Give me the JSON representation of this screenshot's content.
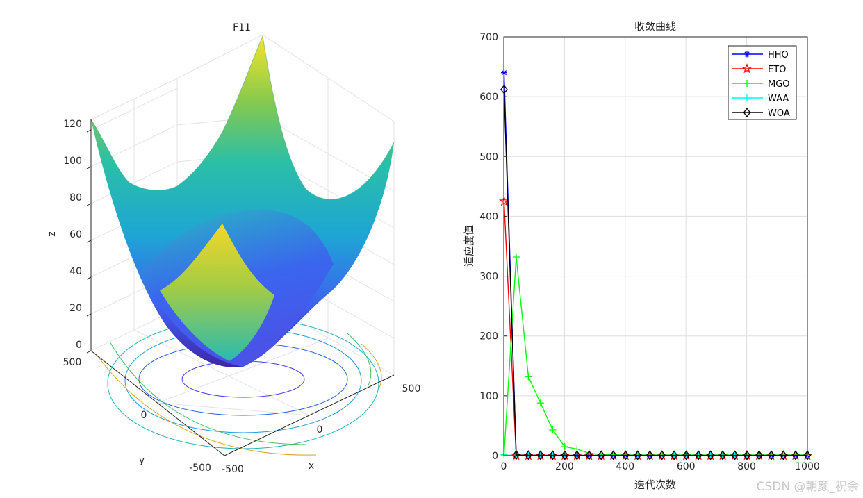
{
  "left_plot": {
    "title": "F11",
    "zlabel": "z",
    "xlabel": "x",
    "ylabel": "y",
    "z_ticks": [
      "0",
      "20",
      "40",
      "60",
      "80",
      "100",
      "120"
    ],
    "x_ticks": [
      "-500",
      "0",
      "500"
    ],
    "y_ticks": [
      "-500",
      "0",
      "500"
    ],
    "colormap": [
      "#3e26a8",
      "#2f67f5",
      "#1ca3d8",
      "#23c3a0",
      "#97ca4a",
      "#f2c42c",
      "#f9fb0e"
    ]
  },
  "chart_data": {
    "type": "line",
    "title": "收敛曲线",
    "xlabel": "迭代次数",
    "ylabel": "适应度值",
    "xlim": [
      0,
      1000
    ],
    "ylim": [
      0,
      700
    ],
    "x_ticks": [
      "0",
      "200",
      "400",
      "600",
      "800",
      "1000"
    ],
    "y_ticks": [
      "0",
      "100",
      "200",
      "300",
      "400",
      "500",
      "600",
      "700"
    ],
    "grid": true,
    "legend_position": "top-right",
    "series": [
      {
        "name": "HHO",
        "color": "#0000ff",
        "marker": "asterisk",
        "x": [
          1,
          41,
          81,
          121,
          161,
          201,
          241,
          281,
          321,
          361,
          401,
          441,
          481,
          521,
          561,
          601,
          641,
          681,
          721,
          761,
          801,
          841,
          881,
          921,
          961,
          1000
        ],
        "values": [
          640,
          0.5,
          0.3,
          0.2,
          0.2,
          0.1,
          0.1,
          0.1,
          0.1,
          0.1,
          0.1,
          0.1,
          0.1,
          0.1,
          0.1,
          0.1,
          0.1,
          0.1,
          0.1,
          0.1,
          0.1,
          0.1,
          0.1,
          0.1,
          0.1,
          0.1
        ]
      },
      {
        "name": "ETO",
        "color": "#ff0000",
        "marker": "pentagram",
        "x": [
          1,
          41,
          81,
          121,
          161,
          201,
          241,
          281,
          321,
          361,
          401,
          441,
          481,
          521,
          561,
          601,
          641,
          681,
          721,
          761,
          801,
          841,
          881,
          921,
          961,
          1000
        ],
        "values": [
          425,
          0,
          0,
          0,
          0,
          0,
          0,
          0,
          0,
          0,
          0,
          0,
          0,
          0,
          0,
          0,
          0,
          0,
          0,
          0,
          0,
          0,
          0,
          0,
          0,
          0
        ]
      },
      {
        "name": "MGO",
        "color": "#00ff00",
        "marker": "plus",
        "x": [
          1,
          41,
          81,
          121,
          161,
          201,
          241,
          281,
          321,
          361,
          401,
          441,
          481,
          521,
          561,
          601,
          641,
          681,
          721,
          761,
          801,
          841,
          881,
          921,
          961,
          1000
        ],
        "values": [
          2,
          332,
          132,
          88,
          43,
          15,
          11,
          4,
          2,
          1.5,
          1,
          1,
          1,
          1,
          1,
          1,
          1,
          1,
          1,
          1,
          1,
          1,
          1,
          1,
          1,
          1
        ]
      },
      {
        "name": "WAA",
        "color": "#00ffff",
        "marker": "plus",
        "x": [
          1,
          41,
          81,
          121,
          161,
          201,
          241,
          281,
          321,
          361,
          401,
          441,
          481,
          521,
          561,
          601,
          641,
          681,
          721,
          761,
          801,
          841,
          881,
          921,
          961,
          1000
        ],
        "values": [
          1,
          0.5,
          0.5,
          0.5,
          0.5,
          0.5,
          0.5,
          0.5,
          0.5,
          0.5,
          0.5,
          0.5,
          0.5,
          0.5,
          0.5,
          0.5,
          0.5,
          0.5,
          0.5,
          0.5,
          0.5,
          0.5,
          0.5,
          0.5,
          0.5,
          0.5
        ]
      },
      {
        "name": "WOA",
        "color": "#000000",
        "marker": "diamond",
        "x": [
          1,
          41,
          81,
          121,
          161,
          201,
          241,
          281,
          321,
          361,
          401,
          441,
          481,
          521,
          561,
          601,
          641,
          681,
          721,
          761,
          801,
          841,
          881,
          921,
          961,
          1000
        ],
        "values": [
          612,
          1,
          0.8,
          0.6,
          0.5,
          0.5,
          0.5,
          0.5,
          0.5,
          0.5,
          0.5,
          0.5,
          0.5,
          0.5,
          0.5,
          0.5,
          0.5,
          0.5,
          0.5,
          0.5,
          0.5,
          0.5,
          0.5,
          0.5,
          0.5,
          0.5
        ]
      }
    ]
  },
  "watermark": "CSDN @朝颜_祝余"
}
